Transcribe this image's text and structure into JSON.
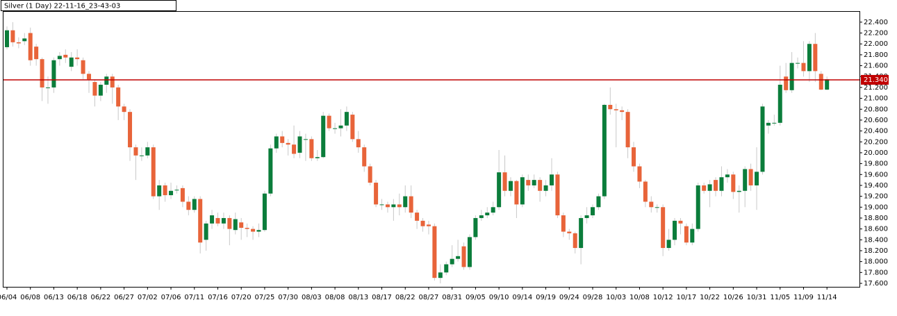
{
  "chart_data": {
    "type": "candlestick",
    "title": "Silver (1 Day) 22-11-16_23-43-03",
    "categories": [
      "06/04",
      null,
      null,
      null,
      "06/08",
      null,
      null,
      null,
      "06/13",
      null,
      null,
      null,
      "06/18",
      null,
      null,
      null,
      "06/22",
      null,
      null,
      null,
      "06/27",
      null,
      null,
      null,
      "07/02",
      null,
      null,
      null,
      "07/06",
      null,
      null,
      null,
      "07/11",
      null,
      null,
      null,
      "07/16",
      null,
      null,
      null,
      "07/20",
      null,
      null,
      null,
      "07/25",
      null,
      null,
      null,
      "07/30",
      null,
      null,
      null,
      "08/03",
      null,
      null,
      null,
      "08/08",
      null,
      null,
      null,
      "08/13",
      null,
      null,
      null,
      "08/17",
      null,
      null,
      null,
      "08/22",
      null,
      null,
      null,
      "08/27",
      null,
      null,
      null,
      "08/31",
      null,
      null,
      null,
      "09/05",
      null,
      null,
      null,
      "09/10",
      null,
      null,
      null,
      "09/14",
      null,
      null,
      null,
      "09/19",
      null,
      null,
      null,
      "09/24",
      null,
      null,
      null,
      "09/28",
      null,
      null,
      null,
      "10/03",
      null,
      null,
      null,
      "10/08",
      null,
      null,
      null,
      "10/12",
      null,
      null,
      null,
      "10/17",
      null,
      null,
      null,
      "10/22",
      null,
      null,
      null,
      "10/26",
      null,
      null,
      null,
      "10/31",
      null,
      null,
      null,
      "11/05",
      null,
      null,
      null,
      "11/09",
      null,
      null,
      null,
      "11/14"
    ],
    "open": [
      21.94,
      22.25,
      22.03,
      22.05,
      22.2,
      21.95,
      21.72,
      21.2,
      21.2,
      21.72,
      21.8,
      21.58,
      21.75,
      21.7,
      21.45,
      21.3,
      21.05,
      21.25,
      21.4,
      21.2,
      20.85,
      20.75,
      20.1,
      19.95,
      19.95,
      20.1,
      19.2,
      19.4,
      19.22,
      19.32,
      19.35,
      19.1,
      18.95,
      19.15,
      18.4,
      18.7,
      18.8,
      18.7,
      18.8,
      18.58,
      18.72,
      18.62,
      18.6,
      18.55,
      18.58,
      19.25,
      20.08,
      20.3,
      20.18,
      20.15,
      20.0,
      20.25,
      20.25,
      19.9,
      19.92,
      20.68,
      20.45,
      20.45,
      20.5,
      20.7,
      20.25,
      20.1,
      19.75,
      19.45,
      19.05,
      19.05,
      19.0,
      19.05,
      19.0,
      19.2,
      18.9,
      18.75,
      18.68,
      18.65,
      17.7,
      17.8,
      17.95,
      18.05,
      18.28,
      17.9,
      18.45,
      18.8,
      18.85,
      18.9,
      19.0,
      19.64,
      19.3,
      19.48,
      19.05,
      19.5,
      19.4,
      19.5,
      19.3,
      19.4,
      19.6,
      18.85,
      18.55,
      18.52,
      18.25,
      18.8,
      18.85,
      19.0,
      19.2,
      20.88,
      20.8,
      20.78,
      20.75,
      20.1,
      19.75,
      19.47,
      19.1,
      19.0,
      19.0,
      18.25,
      18.4,
      18.75,
      18.65,
      18.35,
      18.6,
      19.4,
      19.3,
      19.5,
      19.3,
      19.55,
      19.6,
      19.28,
      19.3,
      19.7,
      19.4,
      19.65,
      20.5,
      20.55,
      20.55,
      21.4,
      21.15,
      21.65,
      21.65,
      21.5,
      22.0,
      21.45,
      21.16
    ],
    "high": [
      22.32,
      22.4,
      22.12,
      22.2,
      22.3,
      22.0,
      21.75,
      21.4,
      21.75,
      21.85,
      21.9,
      21.85,
      21.9,
      21.75,
      21.5,
      21.35,
      21.3,
      21.45,
      21.45,
      21.25,
      20.9,
      20.8,
      20.15,
      20.1,
      20.2,
      20.15,
      19.5,
      19.45,
      19.45,
      19.4,
      19.4,
      19.2,
      19.2,
      19.2,
      18.75,
      18.95,
      18.9,
      18.9,
      18.85,
      18.9,
      18.8,
      18.7,
      18.65,
      18.7,
      19.3,
      20.15,
      20.35,
      20.4,
      20.25,
      20.5,
      20.4,
      20.35,
      20.3,
      20.05,
      20.75,
      20.72,
      20.55,
      20.8,
      20.85,
      20.75,
      20.4,
      20.15,
      19.8,
      19.5,
      19.15,
      19.1,
      19.15,
      19.25,
      19.4,
      19.4,
      18.95,
      18.8,
      18.75,
      18.7,
      17.95,
      18.0,
      18.3,
      18.4,
      18.35,
      18.5,
      18.85,
      18.95,
      19.0,
      19.1,
      20.05,
      19.95,
      19.55,
      19.5,
      19.6,
      19.6,
      19.6,
      19.55,
      19.5,
      19.9,
      19.65,
      18.9,
      18.6,
      18.55,
      18.85,
      19.0,
      19.05,
      19.25,
      20.9,
      21.2,
      20.9,
      20.85,
      20.8,
      20.2,
      19.8,
      19.5,
      19.2,
      19.05,
      19.05,
      18.6,
      18.8,
      18.8,
      18.7,
      18.7,
      19.45,
      19.45,
      19.5,
      19.55,
      19.75,
      19.7,
      19.65,
      19.4,
      19.75,
      19.8,
      20.1,
      20.9,
      20.6,
      20.7,
      21.6,
      21.65,
      21.85,
      21.75,
      22.05,
      22.05,
      22.2,
      21.5,
      21.4
    ],
    "low": [
      21.9,
      21.95,
      21.92,
      21.98,
      21.6,
      21.6,
      20.95,
      20.9,
      21.1,
      21.6,
      21.65,
      21.5,
      21.6,
      21.35,
      21.1,
      20.85,
      20.95,
      21.1,
      20.9,
      20.6,
      20.6,
      19.85,
      19.5,
      19.85,
      19.9,
      19.15,
      18.95,
      19.1,
      19.15,
      19.25,
      19.0,
      18.85,
      18.9,
      18.15,
      18.2,
      18.6,
      18.65,
      18.6,
      18.3,
      18.5,
      18.4,
      18.45,
      18.4,
      18.45,
      18.55,
      19.2,
      20.0,
      20.1,
      19.95,
      19.9,
      19.9,
      19.85,
      19.85,
      19.85,
      19.9,
      20.4,
      20.35,
      20.3,
      20.4,
      20.2,
      20.0,
      19.65,
      19.4,
      19.0,
      18.95,
      18.9,
      18.75,
      18.85,
      18.9,
      18.8,
      18.6,
      18.55,
      18.5,
      17.65,
      17.6,
      17.75,
      17.9,
      18.0,
      17.85,
      17.85,
      18.4,
      18.75,
      18.8,
      18.85,
      18.95,
      19.2,
      19.2,
      18.8,
      19.0,
      19.3,
      19.35,
      19.1,
      19.2,
      19.3,
      18.8,
      18.45,
      18.4,
      18.15,
      17.95,
      18.7,
      18.8,
      18.95,
      19.15,
      20.7,
      20.1,
      20.6,
      19.9,
      19.65,
      19.35,
      19.0,
      18.9,
      18.9,
      18.1,
      18.2,
      18.3,
      18.5,
      18.3,
      18.3,
      18.55,
      19.25,
      19.0,
      19.2,
      19.2,
      19.45,
      19.15,
      18.9,
      19.0,
      19.3,
      18.95,
      19.6,
      20.35,
      20.5,
      20.5,
      21.1,
      21.1,
      21.55,
      21.4,
      21.3,
      21.3,
      21.15,
      21.15
    ],
    "close": [
      22.25,
      22.03,
      22.01,
      22.1,
      21.7,
      21.72,
      21.2,
      21.2,
      21.7,
      21.78,
      21.75,
      21.75,
      21.72,
      21.45,
      21.35,
      21.05,
      21.25,
      21.4,
      21.2,
      20.85,
      20.75,
      20.1,
      19.95,
      19.95,
      20.1,
      19.2,
      19.4,
      19.22,
      19.3,
      19.32,
      19.1,
      18.95,
      19.15,
      18.35,
      18.7,
      18.85,
      18.7,
      18.8,
      18.6,
      18.78,
      18.62,
      18.6,
      18.55,
      18.58,
      19.25,
      20.08,
      20.3,
      20.18,
      20.15,
      19.98,
      20.3,
      20.25,
      19.9,
      19.92,
      20.68,
      20.45,
      20.45,
      20.5,
      20.75,
      20.25,
      20.1,
      19.75,
      19.45,
      19.05,
      19.05,
      19.0,
      19.05,
      19.0,
      19.2,
      18.9,
      18.75,
      18.65,
      18.65,
      17.7,
      17.8,
      17.95,
      18.05,
      18.1,
      17.9,
      18.45,
      18.8,
      18.85,
      18.9,
      19.0,
      19.64,
      19.3,
      19.48,
      19.05,
      19.55,
      19.4,
      19.5,
      19.3,
      19.4,
      19.6,
      18.85,
      18.55,
      18.52,
      18.25,
      18.8,
      18.85,
      19.0,
      19.2,
      20.88,
      20.8,
      20.78,
      20.75,
      20.1,
      19.75,
      19.47,
      19.1,
      19.0,
      19.0,
      18.25,
      18.4,
      18.75,
      18.7,
      18.35,
      18.6,
      19.4,
      19.3,
      19.42,
      19.3,
      19.55,
      19.6,
      19.28,
      19.3,
      19.7,
      19.4,
      19.65,
      20.85,
      20.55,
      20.55,
      21.25,
      21.15,
      21.65,
      21.65,
      21.5,
      22.0,
      21.5,
      21.16,
      21.35
    ],
    "up_color": "#0b7d3b",
    "down_color": "#e8643a",
    "wick_color": "#c8c8c8",
    "ylim": [
      17.536,
      22.59
    ],
    "yticks": [
      {
        "value": 17.6,
        "label": "17.600"
      },
      {
        "value": 17.8,
        "label": "17.800"
      },
      {
        "value": 18.0,
        "label": "18.000"
      },
      {
        "value": 18.2,
        "label": "18.200"
      },
      {
        "value": 18.4,
        "label": "18.400"
      },
      {
        "value": 18.6,
        "label": "18.600"
      },
      {
        "value": 18.8,
        "label": "18.800"
      },
      {
        "value": 19.0,
        "label": "19.000"
      },
      {
        "value": 19.2,
        "label": "19.200"
      },
      {
        "value": 19.4,
        "label": "19.400"
      },
      {
        "value": 19.6,
        "label": "19.600"
      },
      {
        "value": 19.8,
        "label": "19.800"
      },
      {
        "value": 20.0,
        "label": "20.000"
      },
      {
        "value": 20.2,
        "label": "20.200"
      },
      {
        "value": 20.4,
        "label": "20.400"
      },
      {
        "value": 20.6,
        "label": "20.600"
      },
      {
        "value": 20.8,
        "label": "20.800"
      },
      {
        "value": 21.0,
        "label": "21.000"
      },
      {
        "value": 21.2,
        "label": "21.200"
      },
      {
        "value": 21.4,
        "label": "21.400"
      },
      {
        "value": 21.6,
        "label": "21.600"
      },
      {
        "value": 21.8,
        "label": "21.800"
      },
      {
        "value": 22.0,
        "label": "22.000"
      },
      {
        "value": 22.2,
        "label": "22.200"
      },
      {
        "value": 22.4,
        "label": "22.400"
      }
    ],
    "price_line": {
      "value": 21.34,
      "label": "21.340",
      "color": "#c00000"
    }
  }
}
